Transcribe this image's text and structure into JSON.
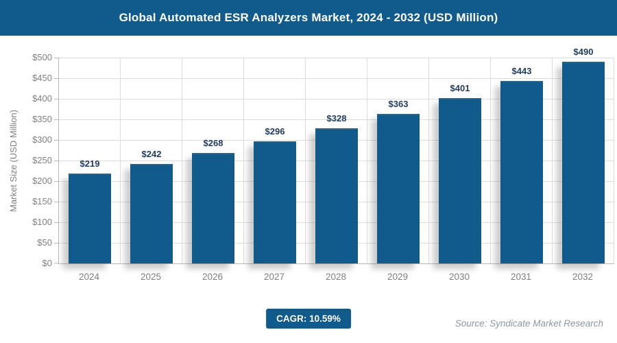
{
  "header": {
    "title": "Global Automated ESR Analyzers Market, 2024 - 2032 (USD Million)"
  },
  "chart_data": {
    "type": "bar",
    "title": "Global Automated ESR Analyzers Market, 2024 - 2032 (USD Million)",
    "categories": [
      "2024",
      "2025",
      "2026",
      "2027",
      "2028",
      "2029",
      "2030",
      "2031",
      "2032"
    ],
    "values": [
      219,
      242,
      268,
      296,
      328,
      363,
      401,
      443,
      490
    ],
    "value_labels": [
      "$219",
      "$242",
      "$268",
      "$296",
      "$328",
      "$363",
      "$401",
      "$443",
      "$490"
    ],
    "xlabel": "",
    "ylabel": "Market Size (USD Million)",
    "ylim": [
      0,
      500
    ],
    "ytick_step": 50,
    "ytick_prefix": "$",
    "grid": true,
    "legend": false,
    "bar_color": "#115a8c",
    "value_label_color": "#1f3a5f"
  },
  "footer": {
    "cagr_label": "CAGR: 10.59%",
    "source": "Source: Syndicate Market Research"
  },
  "colors": {
    "accent_blue": "#115a8c",
    "gridline": "#dcdcdc",
    "axis_line": "#b8b8b8",
    "tick_text": "#7f7f7f",
    "source_text": "#8a98a0",
    "background": "#ffffff"
  }
}
